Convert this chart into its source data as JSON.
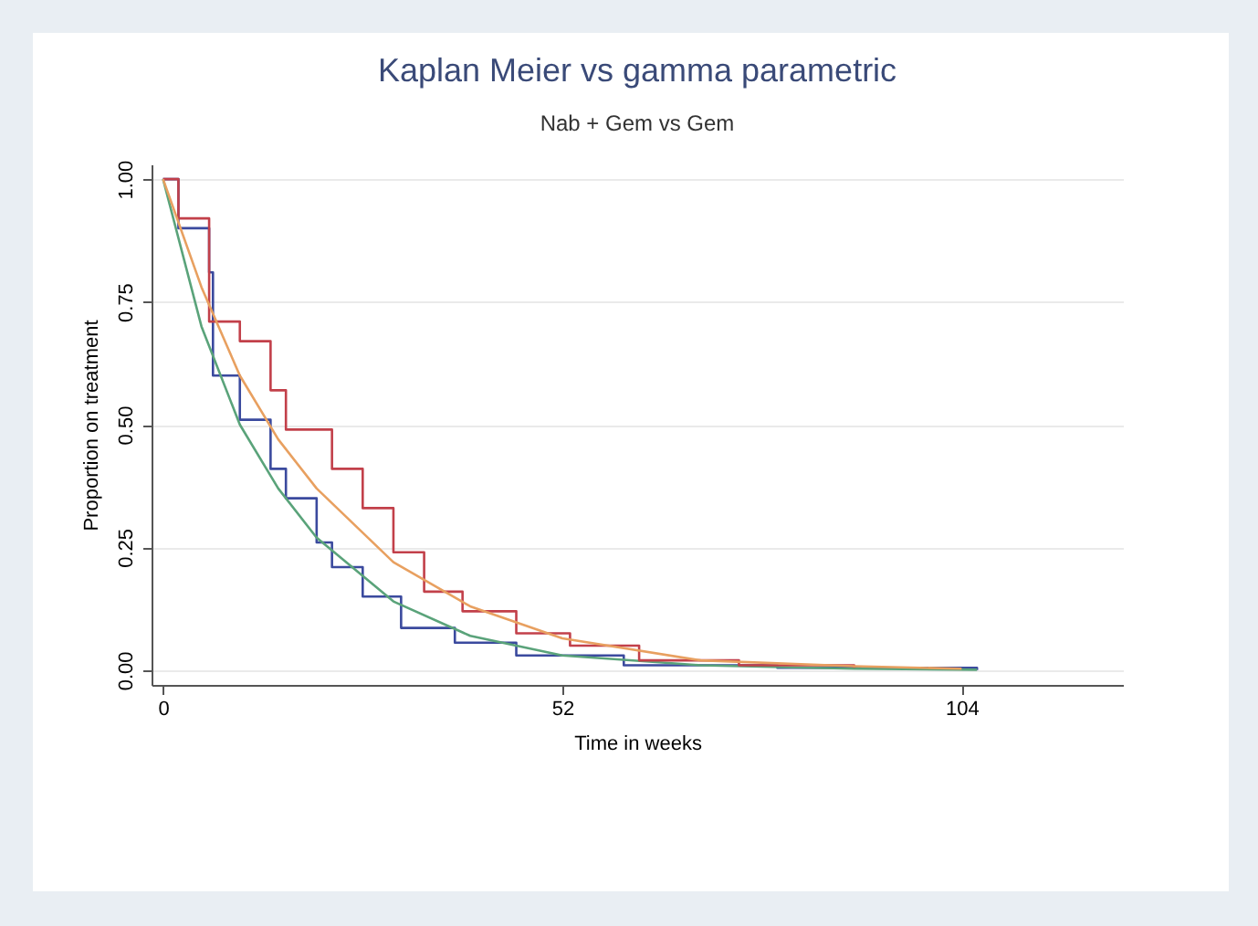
{
  "chart_data": {
    "type": "line",
    "title": "Kaplan Meier vs gamma parametric",
    "subtitle": "Nab + Gem vs Gem",
    "xlabel": "Time in weeks",
    "ylabel": "Proportion on treatment",
    "xlim": [
      -1.5,
      125
    ],
    "xticks": [
      0,
      52,
      104
    ],
    "ylim": [
      -0.03,
      1.03
    ],
    "yticks": [
      {
        "value": 0,
        "label": "0.00"
      },
      {
        "value": 0.25,
        "label": "0.25"
      },
      {
        "value": 0.5,
        "label": "0.50"
      },
      {
        "value": 0.75,
        "label": "0.75"
      },
      {
        "value": 1,
        "label": "1.00"
      }
    ],
    "grid": "y",
    "series": [
      {
        "type": "step",
        "color": "#3b4a9e",
        "x": [
          0,
          2,
          6,
          6.5,
          10,
          14,
          16,
          20,
          22,
          26,
          31,
          38,
          46,
          60,
          80,
          106
        ],
        "values": [
          1,
          0.9,
          0.81,
          0.6,
          0.51,
          0.41,
          0.35,
          0.26,
          0.21,
          0.15,
          0.086,
          0.056,
          0.03,
          0.01,
          0.005,
          0
        ]
      },
      {
        "color": "#5aa37a",
        "x": [
          0,
          5,
          10,
          15,
          20,
          30,
          40,
          52,
          70,
          90,
          106
        ],
        "values": [
          1,
          0.7,
          0.5,
          0.37,
          0.27,
          0.14,
          0.07,
          0.03,
          0.01,
          0.003,
          0.001
        ]
      },
      {
        "type": "step",
        "color": "#c2404a",
        "x": [
          0,
          2,
          6,
          10,
          14,
          16,
          22,
          26,
          30,
          34,
          39,
          46,
          53,
          62,
          75,
          90
        ],
        "values": [
          1,
          0.92,
          0.71,
          0.67,
          0.57,
          0.49,
          0.41,
          0.33,
          0.24,
          0.16,
          0.12,
          0.075,
          0.05,
          0.02,
          0.01,
          0.005
        ]
      },
      {
        "color": "#e8a060",
        "x": [
          0,
          5,
          10,
          15,
          20,
          30,
          40,
          52,
          70,
          90,
          104
        ],
        "values": [
          1,
          0.78,
          0.6,
          0.47,
          0.37,
          0.22,
          0.13,
          0.065,
          0.02,
          0.008,
          0.003
        ]
      }
    ]
  }
}
